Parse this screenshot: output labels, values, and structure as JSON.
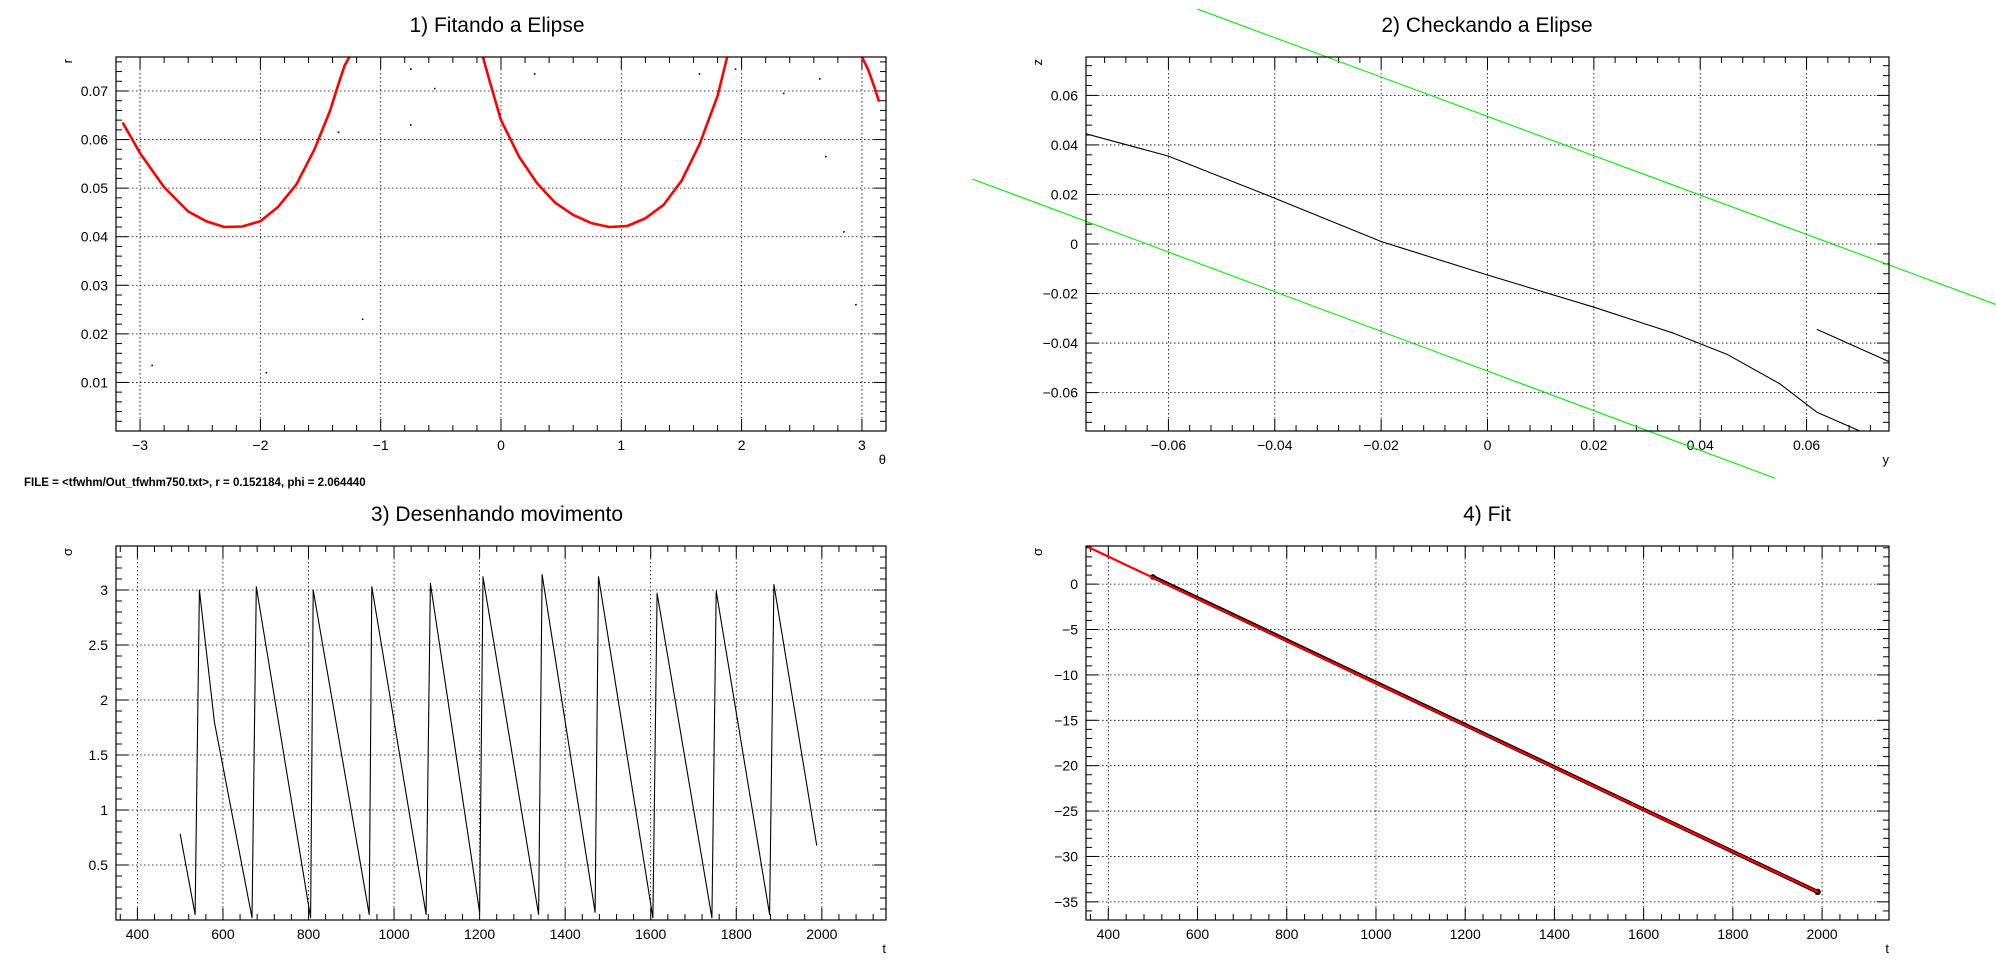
{
  "info_text": "FILE = <tfwhm/Out_tfwhm750.txt>, r = 0.152184, phi = 2.064440",
  "colors": {
    "fit": "#ff0000",
    "band": "#00ee00",
    "data": "#000000"
  },
  "chart_data": [
    {
      "type": "line",
      "title": "1) Fitando a Elipse",
      "xlabel": "θ",
      "ylabel": "r",
      "xlim": [
        -3.2,
        3.2
      ],
      "ylim": [
        0,
        0.077
      ],
      "xticks": [
        -3,
        -2,
        -1,
        0,
        1,
        2,
        3
      ],
      "xtick_labels": [
        "−3",
        "−2",
        "−1",
        "0",
        "1",
        "2",
        "3"
      ],
      "yticks": [
        0.01,
        0.02,
        0.03,
        0.04,
        0.05,
        0.06,
        0.07
      ],
      "ytick_labels": [
        "0.01",
        "0.02",
        "0.03",
        "0.04",
        "0.05",
        "0.06",
        "0.07"
      ],
      "grid": true,
      "series": [
        {
          "role": "fit",
          "segments": [
            {
              "x": [
                -3.14,
                -3.0,
                -2.8,
                -2.6,
                -2.45,
                -2.3,
                -2.15,
                -2.0,
                -1.85,
                -1.7,
                -1.55,
                -1.42,
                -1.35,
                -1.3,
                -1.26
              ],
              "y": [
                0.0633,
                0.0572,
                0.0502,
                0.0452,
                0.0432,
                0.042,
                0.0421,
                0.0432,
                0.0462,
                0.0508,
                0.058,
                0.066,
                0.0715,
                0.0752,
                0.077
              ]
            },
            {
              "x": [
                -0.15,
                -0.1,
                0.0,
                0.15,
                0.3,
                0.45,
                0.6,
                0.75,
                0.9,
                1.05,
                1.2,
                1.35,
                1.5,
                1.65,
                1.8,
                1.88
              ],
              "y": [
                0.077,
                0.0725,
                0.064,
                0.0565,
                0.051,
                0.047,
                0.0445,
                0.0428,
                0.042,
                0.0422,
                0.0438,
                0.0465,
                0.0515,
                0.059,
                0.069,
                0.077
              ]
            },
            {
              "x": [
                3.0,
                3.05,
                3.1,
                3.14
              ],
              "y": [
                0.077,
                0.0745,
                0.071,
                0.068
              ]
            }
          ]
        },
        {
          "role": "points",
          "x": [
            -2.9,
            -1.95,
            -1.15,
            -0.75,
            -0.75,
            -0.55,
            -1.35,
            0.28,
            1.65,
            2.35,
            2.65,
            2.7,
            2.85,
            2.95,
            1.95
          ],
          "y": [
            0.0135,
            0.012,
            0.023,
            0.0745,
            0.063,
            0.0705,
            0.0615,
            0.0735,
            0.0735,
            0.0695,
            0.0725,
            0.0565,
            0.041,
            0.026,
            0.0745
          ]
        }
      ]
    },
    {
      "type": "line",
      "title": "2) Checkando a Elipse",
      "xlabel": "y",
      "ylabel": "z",
      "xlim": [
        -0.0755,
        0.0755
      ],
      "ylim": [
        -0.0755,
        0.0755
      ],
      "xticks": [
        -0.06,
        -0.04,
        -0.02,
        0,
        0.02,
        0.04,
        0.06
      ],
      "xtick_labels": [
        "−0.06",
        "−0.04",
        "−0.02",
        "0",
        "0.02",
        "0.04",
        "0.06"
      ],
      "yticks": [
        -0.06,
        -0.04,
        -0.02,
        0,
        0.02,
        0.04,
        0.06
      ],
      "ytick_labels": [
        "−0.06",
        "−0.04",
        "−0.02",
        "0",
        "0.02",
        "0.04",
        "0.06"
      ],
      "grid": true,
      "series": [
        {
          "role": "data",
          "segments": [
            {
              "x": [
                -0.0755,
                -0.06,
                -0.04,
                -0.02,
                0.0,
                0.02,
                0.035,
                0.045,
                0.055,
                0.062,
                0.07
              ],
              "y": [
                0.0445,
                0.0355,
                0.0185,
                0.001,
                -0.0125,
                -0.0255,
                -0.036,
                -0.0445,
                -0.0565,
                -0.068,
                -0.0755
              ]
            },
            {
              "x": [
                0.062,
                0.0755
              ],
              "y": [
                -0.0345,
                -0.0475
              ]
            }
          ]
        },
        {
          "role": "band",
          "segments": [
            {
              "x": [
                -0.0545,
                0.097
              ],
              "y": [
                0.0948,
                -0.0255
              ]
            },
            {
              "x": [
                -0.0968,
                0.054
              ],
              "y": [
                0.0262,
                -0.0945
              ]
            }
          ]
        }
      ]
    },
    {
      "type": "line",
      "title": "3) Desenhando movimento",
      "xlabel": "t",
      "ylabel": "σ",
      "xlim": [
        350,
        2150
      ],
      "ylim": [
        0,
        3.4
      ],
      "xticks": [
        400,
        600,
        800,
        1000,
        1200,
        1400,
        1600,
        1800,
        2000
      ],
      "xtick_labels": [
        "400",
        "600",
        "800",
        "1000",
        "1200",
        "1400",
        "1600",
        "1800",
        "2000"
      ],
      "yticks": [
        0.5,
        1,
        1.5,
        2,
        2.5,
        3
      ],
      "ytick_labels": [
        "0.5",
        "1",
        "1.5",
        "2",
        "2.5",
        "3"
      ],
      "grid": true,
      "series": [
        {
          "role": "data",
          "x": [
            500,
            535,
            545,
            580,
            668,
            678,
            805,
            811,
            942,
            948,
            1075,
            1085,
            1200,
            1208,
            1338,
            1346,
            1470,
            1478,
            1605,
            1615,
            1743,
            1753,
            1878,
            1888,
            1988
          ],
          "y": [
            0.78,
            0.05,
            3.0,
            1.8,
            0.02,
            3.03,
            0.02,
            3.0,
            0.05,
            3.03,
            0.05,
            3.06,
            0.07,
            3.12,
            0.05,
            3.14,
            0.07,
            3.12,
            0.02,
            2.97,
            0.02,
            2.99,
            0.05,
            3.05,
            0.68
          ]
        }
      ]
    },
    {
      "type": "line",
      "title": "4) Fit",
      "xlabel": "t",
      "ylabel": "σ",
      "xlim": [
        350,
        2150
      ],
      "ylim": [
        -37,
        4.2
      ],
      "xticks": [
        400,
        600,
        800,
        1000,
        1200,
        1400,
        1600,
        1800,
        2000
      ],
      "xtick_labels": [
        "400",
        "600",
        "800",
        "1000",
        "1200",
        "1400",
        "1600",
        "1800",
        "2000"
      ],
      "yticks": [
        -35,
        -30,
        -25,
        -20,
        -15,
        -10,
        -5,
        0
      ],
      "ytick_labels": [
        "−35",
        "−30",
        "−25",
        "−20",
        "−15",
        "−10",
        "−5",
        "0"
      ],
      "grid": true,
      "series": [
        {
          "role": "data",
          "x": [
            500,
            1990
          ],
          "y": [
            0.8,
            -33.9
          ]
        },
        {
          "role": "fit",
          "x": [
            350,
            1990
          ],
          "y": [
            4.2,
            -33.9
          ]
        }
      ]
    }
  ]
}
